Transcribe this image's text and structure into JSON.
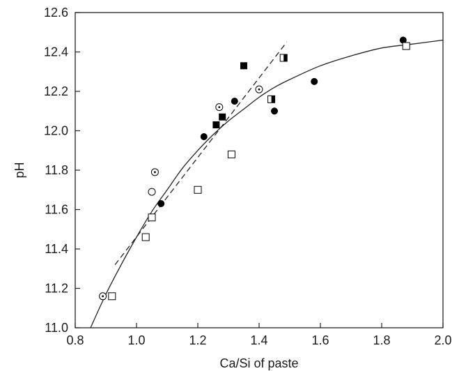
{
  "chart_data": {
    "type": "scatter",
    "title": "",
    "xlabel": "Ca/Si of paste",
    "ylabel": "pH",
    "xlim": [
      0.8,
      2.0
    ],
    "ylim": [
      11.0,
      12.6
    ],
    "x_ticks": [
      0.8,
      1.0,
      1.2,
      1.4,
      1.6,
      1.8,
      2.0
    ],
    "x_tick_labels": [
      "0.8",
      "1.0",
      "1.2",
      "1.4",
      "1.6",
      "1.8",
      "2.0"
    ],
    "y_ticks": [
      11.0,
      11.2,
      11.4,
      11.6,
      11.8,
      12.0,
      12.2,
      12.4,
      12.6
    ],
    "y_tick_labels": [
      "11.0",
      "11.2",
      "11.4",
      "11.6",
      "11.8",
      "12.0",
      "12.2",
      "12.4",
      "12.6"
    ],
    "grid": false,
    "legend": "none",
    "series": [
      {
        "marker": "filled-circle",
        "color": "#000000",
        "x": [
          1.08,
          1.22,
          1.32,
          1.45,
          1.58,
          1.87
        ],
        "y": [
          11.63,
          11.97,
          12.15,
          12.1,
          12.25,
          12.46
        ]
      },
      {
        "marker": "filled-square",
        "color": "#000000",
        "x": [
          1.26,
          1.28,
          1.35
        ],
        "y": [
          12.03,
          12.07,
          12.33
        ]
      },
      {
        "marker": "open-square",
        "color": "#000000",
        "x": [
          0.92,
          1.03,
          1.05,
          1.2,
          1.31,
          1.88
        ],
        "y": [
          11.16,
          11.46,
          11.56,
          11.7,
          11.88,
          12.43
        ]
      },
      {
        "marker": "half-filled-square",
        "color": "#000000",
        "x": [
          1.44,
          1.48
        ],
        "y": [
          12.16,
          12.37
        ]
      },
      {
        "marker": "dotted-circle",
        "color": "#000000",
        "x": [
          0.89,
          1.06,
          1.27,
          1.4
        ],
        "y": [
          11.16,
          11.79,
          12.12,
          12.21
        ]
      },
      {
        "marker": "open-circle",
        "color": "#000000",
        "x": [
          1.05
        ],
        "y": [
          11.69
        ]
      }
    ],
    "fit_lines": [
      {
        "style": "solid",
        "kind": "curve",
        "x": [
          0.85,
          0.9,
          0.95,
          1.0,
          1.05,
          1.1,
          1.15,
          1.2,
          1.25,
          1.3,
          1.35,
          1.4,
          1.45,
          1.5,
          1.6,
          1.7,
          1.8,
          1.9,
          2.0
        ],
        "y": [
          11.0,
          11.17,
          11.32,
          11.46,
          11.59,
          11.7,
          11.81,
          11.9,
          11.98,
          12.05,
          12.11,
          12.17,
          12.22,
          12.26,
          12.33,
          12.38,
          12.42,
          12.44,
          12.46
        ]
      },
      {
        "style": "dashed",
        "kind": "line",
        "x": [
          0.93,
          1.49
        ],
        "y": [
          11.32,
          12.45
        ]
      }
    ]
  }
}
